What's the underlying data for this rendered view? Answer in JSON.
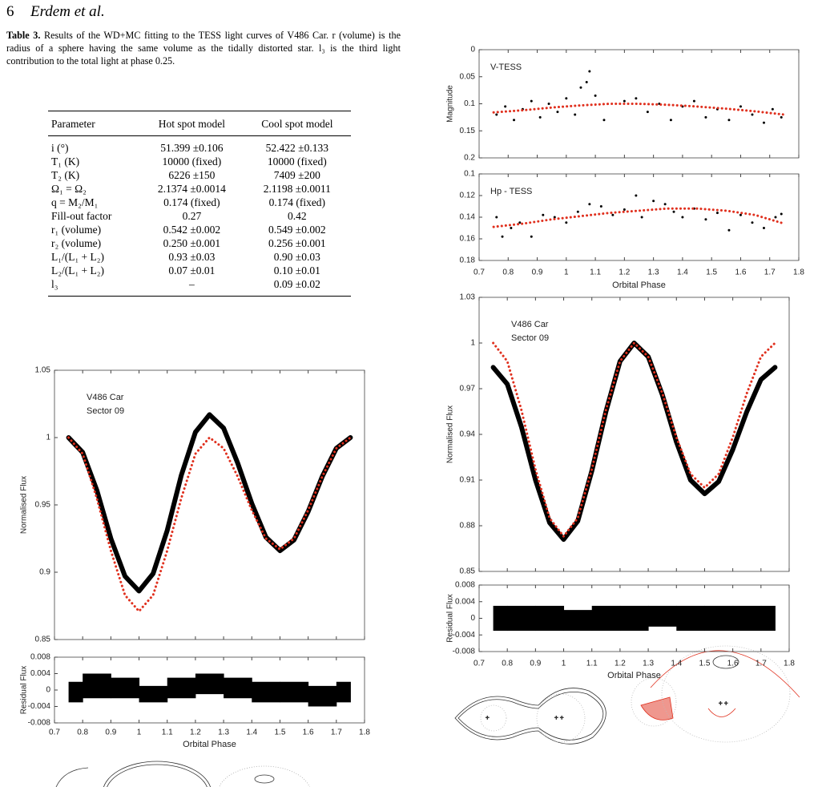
{
  "header": {
    "page_number": "6",
    "authors": "Erdem et al."
  },
  "table": {
    "caption_label": "Table 3.",
    "caption": "Results of the WD+MC fitting to the TESS light curves of V486 Car. r (volume) is the radius of a sphere having the same volume as the tidally distorted star. l₃ is the third light contribution to the total light at phase 0.25.",
    "columns": [
      "Parameter",
      "Hot spot model",
      "Cool spot model"
    ],
    "rows": [
      [
        "i (°)",
        "51.399 ±0.106",
        "52.422 ±0.133"
      ],
      [
        "T₁ (K)",
        "10000 (fixed)",
        "10000 (fixed)"
      ],
      [
        "T₂ (K)",
        "6226 ±150",
        "7409 ±200"
      ],
      [
        "Ω₁ = Ω₂",
        "2.1374 ±0.0014",
        "2.1198 ±0.0011"
      ],
      [
        "q = M₂/M₁",
        "0.174 (fixed)",
        "0.174 (fixed)"
      ],
      [
        "Fill-out factor",
        "0.27",
        "0.42"
      ],
      [
        "r₁ (volume)",
        "0.542 ±0.002",
        "0.549 ±0.002"
      ],
      [
        "r₂ (volume)",
        "0.250 ±0.001",
        "0.256 ±0.001"
      ],
      [
        "L₁/(L₁ + L₂)",
        "0.93 ±0.03",
        "0.90 ±0.03"
      ],
      [
        "L₂/(L₁ + L₂)",
        "0.07 ±0.01",
        "0.10 ±0.01"
      ],
      [
        "l₃",
        "–",
        "0.09 ±0.02"
      ]
    ]
  },
  "chart_data": [
    {
      "type": "multipanel",
      "xlabel": "Orbital Phase",
      "xlim": [
        0.7,
        1.8
      ],
      "xticks": [
        0.7,
        0.8,
        0.9,
        1,
        1.1,
        1.2,
        1.3,
        1.4,
        1.5,
        1.6,
        1.7,
        1.8
      ],
      "panels": [
        {
          "ylabel": "Magnitude",
          "ylim": [
            0,
            0.2
          ],
          "yticks": [
            0,
            0.05,
            0.1,
            0.15,
            0.2
          ],
          "y_inverted": true,
          "annotations": [
            "V-TESS"
          ],
          "series": [
            {
              "type": "scatter",
              "color": "#000000",
              "x": [
                0.76,
                0.79,
                0.82,
                0.85,
                0.88,
                0.91,
                0.94,
                0.97,
                1.0,
                1.03,
                1.05,
                1.07,
                1.08,
                1.1,
                1.13,
                1.2,
                1.24,
                1.28,
                1.32,
                1.36,
                1.4,
                1.44,
                1.48,
                1.52,
                1.56,
                1.6,
                1.64,
                1.68,
                1.71,
                1.74
              ],
              "values": [
                0.12,
                0.105,
                0.13,
                0.11,
                0.095,
                0.125,
                0.1,
                0.115,
                0.09,
                0.12,
                0.07,
                0.06,
                0.04,
                0.085,
                0.13,
                0.095,
                0.09,
                0.115,
                0.1,
                0.13,
                0.105,
                0.095,
                0.125,
                0.11,
                0.13,
                0.105,
                0.12,
                0.135,
                0.11,
                0.125
              ]
            },
            {
              "type": "line",
              "color": "#e0301e",
              "dotted": true,
              "x": [
                0.75,
                0.85,
                0.95,
                1.05,
                1.15,
                1.25,
                1.35,
                1.45,
                1.55,
                1.65,
                1.75
              ],
              "values": [
                0.116,
                0.112,
                0.107,
                0.103,
                0.1,
                0.1,
                0.102,
                0.105,
                0.109,
                0.114,
                0.12
              ]
            }
          ]
        },
        {
          "ylim": [
            0.1,
            0.18
          ],
          "yticks": [
            0.1,
            0.12,
            0.14,
            0.16,
            0.18
          ],
          "y_inverted": true,
          "annotations": [
            "Hp - TESS"
          ],
          "series": [
            {
              "type": "scatter",
              "color": "#000000",
              "x": [
                0.76,
                0.78,
                0.81,
                0.84,
                0.88,
                0.92,
                0.96,
                1.0,
                1.04,
                1.08,
                1.12,
                1.16,
                1.2,
                1.24,
                1.26,
                1.3,
                1.34,
                1.37,
                1.4,
                1.44,
                1.48,
                1.52,
                1.56,
                1.6,
                1.64,
                1.68,
                1.72,
                1.74
              ],
              "values": [
                0.14,
                0.158,
                0.15,
                0.145,
                0.158,
                0.138,
                0.14,
                0.145,
                0.135,
                0.128,
                0.13,
                0.138,
                0.133,
                0.12,
                0.14,
                0.125,
                0.128,
                0.135,
                0.14,
                0.132,
                0.142,
                0.136,
                0.152,
                0.138,
                0.145,
                0.15,
                0.14,
                0.137
              ]
            },
            {
              "type": "line",
              "color": "#e0301e",
              "dotted": true,
              "x": [
                0.75,
                0.85,
                0.95,
                1.05,
                1.15,
                1.25,
                1.35,
                1.45,
                1.55,
                1.65,
                1.75
              ],
              "values": [
                0.149,
                0.146,
                0.142,
                0.139,
                0.136,
                0.134,
                0.132,
                0.132,
                0.134,
                0.138,
                0.146
              ]
            }
          ]
        }
      ]
    },
    {
      "type": "multipanel",
      "xlabel": "Orbital Phase",
      "xlim": [
        0.7,
        1.8
      ],
      "xticks": [
        0.7,
        0.8,
        0.9,
        1,
        1.1,
        1.2,
        1.3,
        1.4,
        1.5,
        1.6,
        1.7,
        1.8
      ],
      "panels": [
        {
          "ylabel": "Normalised Flux",
          "ylim": [
            0.85,
            1.05
          ],
          "yticks": [
            0.85,
            0.9,
            0.95,
            1,
            1.05
          ],
          "annotations": [
            "V486 Car",
            "Sector 09"
          ],
          "series": [
            {
              "type": "line",
              "color": "#000000",
              "x": [
                0.75,
                0.8,
                0.85,
                0.9,
                0.95,
                1.0,
                1.05,
                1.1,
                1.15,
                1.2,
                1.25,
                1.3,
                1.35,
                1.4,
                1.45,
                1.5,
                1.55,
                1.6,
                1.65,
                1.7,
                1.75
              ],
              "values": [
                1.0,
                0.989,
                0.961,
                0.925,
                0.897,
                0.886,
                0.899,
                0.931,
                0.972,
                1.004,
                1.017,
                1.007,
                0.981,
                0.951,
                0.926,
                0.916,
                0.924,
                0.945,
                0.971,
                0.992,
                1.0
              ]
            },
            {
              "type": "line",
              "color": "#e0301e",
              "dotted": true,
              "x": [
                0.75,
                0.8,
                0.85,
                0.9,
                0.95,
                1.0,
                1.05,
                1.1,
                1.15,
                1.2,
                1.25,
                1.3,
                1.35,
                1.4,
                1.45,
                1.5,
                1.55,
                1.6,
                1.65,
                1.7,
                1.75
              ],
              "values": [
                1.0,
                0.988,
                0.955,
                0.916,
                0.883,
                0.871,
                0.883,
                0.916,
                0.955,
                0.988,
                1.0,
                0.992,
                0.971,
                0.946,
                0.925,
                0.917,
                0.925,
                0.946,
                0.971,
                0.992,
                1.0
              ]
            }
          ]
        },
        {
          "ylabel": "Residual Flux",
          "ylim": [
            -0.008,
            0.008
          ],
          "yticks": [
            -0.008,
            -0.004,
            0,
            0.004,
            0.008
          ],
          "series": [
            {
              "type": "band",
              "color": "#000000",
              "x": [
                0.75,
                0.85,
                0.95,
                1.05,
                1.15,
                1.25,
                1.35,
                1.45,
                1.55,
                1.65,
                1.75
              ],
              "upper": [
                0.002,
                0.004,
                0.003,
                0.001,
                0.003,
                0.004,
                0.003,
                0.002,
                0.002,
                0.001,
                0.002
              ],
              "lower": [
                -0.003,
                -0.002,
                -0.002,
                -0.003,
                -0.002,
                -0.001,
                -0.002,
                -0.003,
                -0.003,
                -0.004,
                -0.003
              ]
            }
          ]
        }
      ]
    },
    {
      "type": "multipanel",
      "xlabel": "Orbital Phase",
      "xlim": [
        0.7,
        1.8
      ],
      "xticks": [
        0.7,
        0.8,
        0.9,
        1,
        1.1,
        1.2,
        1.3,
        1.4,
        1.5,
        1.6,
        1.7,
        1.8
      ],
      "panels": [
        {
          "ylabel": "Normalised Flux",
          "ylim": [
            0.85,
            1.03
          ],
          "yticks": [
            0.85,
            0.88,
            0.91,
            0.94,
            0.97,
            1,
            1.03
          ],
          "annotations": [
            "V486 Car",
            "Sector 09"
          ],
          "series": [
            {
              "type": "line",
              "color": "#000000",
              "x": [
                0.75,
                0.8,
                0.85,
                0.9,
                0.95,
                1.0,
                1.05,
                1.1,
                1.15,
                1.2,
                1.25,
                1.3,
                1.35,
                1.4,
                1.45,
                1.5,
                1.55,
                1.6,
                1.65,
                1.7,
                1.75
              ],
              "values": [
                0.984,
                0.973,
                0.945,
                0.91,
                0.882,
                0.871,
                0.883,
                0.916,
                0.955,
                0.988,
                1.0,
                0.991,
                0.966,
                0.935,
                0.91,
                0.901,
                0.909,
                0.93,
                0.955,
                0.976,
                0.984
              ]
            },
            {
              "type": "line",
              "color": "#e0301e",
              "dotted": true,
              "x": [
                0.75,
                0.8,
                0.85,
                0.9,
                0.95,
                1.0,
                1.05,
                1.1,
                1.15,
                1.2,
                1.25,
                1.3,
                1.35,
                1.4,
                1.45,
                1.5,
                1.55,
                1.6,
                1.65,
                1.7,
                1.75
              ],
              "values": [
                1.0,
                0.988,
                0.956,
                0.917,
                0.885,
                0.873,
                0.885,
                0.917,
                0.956,
                0.988,
                1.0,
                0.991,
                0.967,
                0.938,
                0.914,
                0.905,
                0.914,
                0.938,
                0.967,
                0.991,
                1.0
              ]
            }
          ]
        },
        {
          "ylabel": "Residual Flux",
          "ylim": [
            -0.008,
            0.008
          ],
          "yticks": [
            -0.008,
            -0.004,
            0,
            0.004,
            0.008
          ],
          "series": [
            {
              "type": "band",
              "color": "#000000",
              "x": [
                0.75,
                0.85,
                0.95,
                1.05,
                1.15,
                1.25,
                1.35,
                1.45,
                1.55,
                1.65,
                1.75
              ],
              "upper": [
                0.003,
                0.003,
                0.003,
                0.002,
                0.003,
                0.003,
                0.003,
                0.003,
                0.003,
                0.003,
                0.003
              ],
              "lower": [
                -0.003,
                -0.003,
                -0.003,
                -0.003,
                -0.003,
                -0.003,
                -0.002,
                -0.003,
                -0.003,
                -0.003,
                -0.003
              ]
            }
          ]
        }
      ]
    }
  ]
}
